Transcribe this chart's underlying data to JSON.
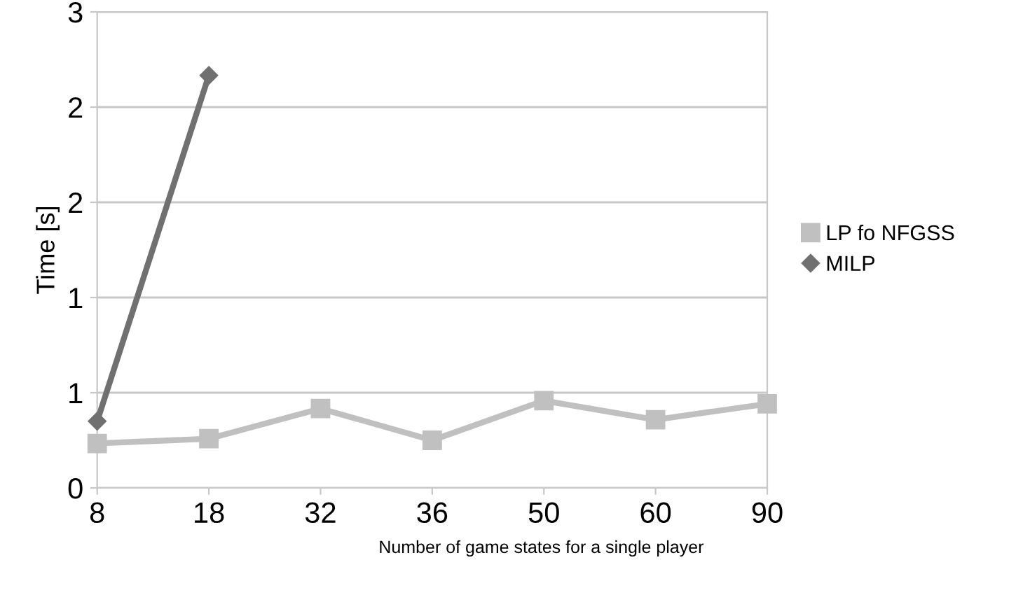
{
  "chart_data": {
    "type": "line",
    "xlabel": "Number of game states for a single player",
    "ylabel": "Time [s]",
    "categories": [
      "8",
      "18",
      "32",
      "36",
      "50",
      "60",
      "90"
    ],
    "series": [
      {
        "name": "LP fo NFGSS",
        "color": "#c0c0c0",
        "marker": "square",
        "values": [
          0.28,
          0.31,
          0.5,
          0.3,
          0.55,
          0.43,
          0.53
        ]
      },
      {
        "name": "MILP",
        "color": "#707070",
        "marker": "diamond",
        "values": [
          0.42,
          2.6,
          null,
          null,
          null,
          null,
          null
        ]
      }
    ],
    "ylim": [
      0,
      3
    ],
    "yticks": [
      0,
      {
        "value": 0.6,
        "label": "1"
      },
      {
        "value": 1.2,
        "label": "1"
      },
      {
        "value": 1.8,
        "label": "2"
      },
      {
        "value": 2.4,
        "label": "2"
      },
      3
    ],
    "grid": "y",
    "legend": "right",
    "line_style": "solid"
  }
}
